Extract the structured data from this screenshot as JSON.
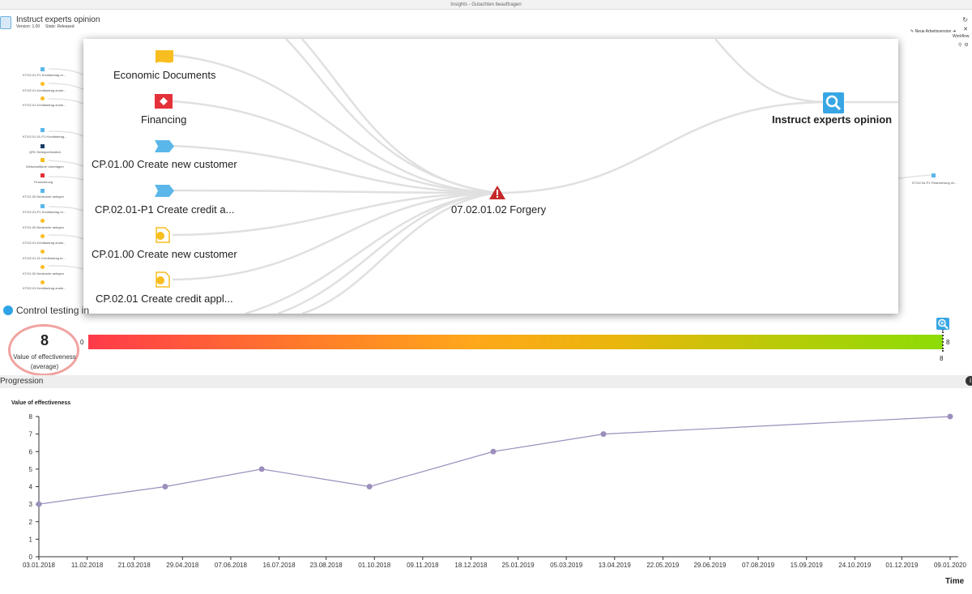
{
  "window": {
    "title": "Insights - Gutachten beauftragen"
  },
  "header": {
    "title": "Instruct experts opinion",
    "version": "Version: 1.00",
    "state": "State: Released",
    "actions": [
      {
        "label": "Neue Arbeitsversion",
        "icon": "pencil-icon"
      },
      {
        "label": "Workflow",
        "icon": "arrow-right-icon"
      }
    ]
  },
  "background_graph": {
    "left_items": [
      "KT/02.01-P1 Kreditantrag er...",
      "KT/02.01 Kreditantrag anste...",
      "KT/02.01 Kreditantrag anste...",
      "KT/02.01-01-P1 Kreditantrag...",
      "QRC Belegverbindlich",
      "Wirtschaftliche Unterlagen",
      "Finanzierung",
      "KT/01.00 Neukunde anlegen",
      "KT/02.01-P1 Kreditantrag er...",
      "KT/01.00 Neukunde anlegen",
      "KT/02.01 Kreditantrag anste...",
      "KT/02.01-01 Kreditantrag er...",
      "KT/01.00 Neukunde anlegen",
      "KT/02.01 Kreditantrag anste..."
    ],
    "right_item": "KT/02.04-P1 Finanzierung ve..."
  },
  "popup": {
    "left_nodes": [
      {
        "label": "Economic Documents",
        "icon": "folder-icon",
        "color": "#f8bd1f"
      },
      {
        "label": "Financing",
        "icon": "financing-icon",
        "color": "#e4313a"
      },
      {
        "label": "CP.01.00 Create new customer",
        "icon": "process-arrow-icon",
        "color": "#5bb7ea"
      },
      {
        "label": "CP.02.01-P1 Create credit a...",
        "icon": "process-arrow-icon",
        "color": "#5bb7ea"
      },
      {
        "label": "CP.01.00 Create new customer",
        "icon": "document-circle-icon",
        "color": "#f8bd1f"
      },
      {
        "label": "CP.02.01 Create credit appl...",
        "icon": "document-circle-icon",
        "color": "#f8bd1f"
      }
    ],
    "center_node": {
      "label": "07.02.01.02 Forgery",
      "icon": "warning-triangle-icon",
      "color": "#c62828"
    },
    "target_node": {
      "label": "Instruct experts opinion",
      "icon": "magnifier-icon",
      "color": "#38a6e4"
    }
  },
  "control_testing": {
    "label": "Control testing in",
    "value": "8",
    "value_label_1": "Value of effectiveness",
    "value_label_2": "(average)",
    "gauge_min": "0",
    "gauge_max": "8",
    "gauge_value": 8,
    "gauge_value_label": "8"
  },
  "progression": {
    "label": "Progression"
  },
  "chart_data": {
    "type": "line",
    "ylabel": "Value of effectiveness",
    "xlabel": "Time",
    "ylim": [
      0,
      8
    ],
    "yticks": [
      "0",
      "1",
      "2",
      "3",
      "4",
      "5",
      "6",
      "7",
      "8"
    ],
    "xticks": [
      "03.01.2018",
      "11.02.2018",
      "21.03.2018",
      "29.04.2018",
      "07.06.2018",
      "16.07.2018",
      "23.08.2018",
      "01.10.2018",
      "09.11.2018",
      "18.12.2018",
      "25.01.2019",
      "05.03.2019",
      "13.04.2019",
      "22.05.2019",
      "29.06.2019",
      "07.08.2019",
      "15.09.2019",
      "24.10.2019",
      "01.12.2019",
      "09.01.2020"
    ],
    "series": [
      {
        "x": [
          "03.01.2018",
          "15.04.2018",
          "02.07.2018",
          "27.09.2018",
          "05.01.2019",
          "04.04.2019",
          "09.01.2020"
        ],
        "values": [
          3,
          4,
          5,
          4,
          6,
          7,
          8
        ],
        "color": "#9c8fbd"
      }
    ],
    "grid": false,
    "legend": "none"
  }
}
